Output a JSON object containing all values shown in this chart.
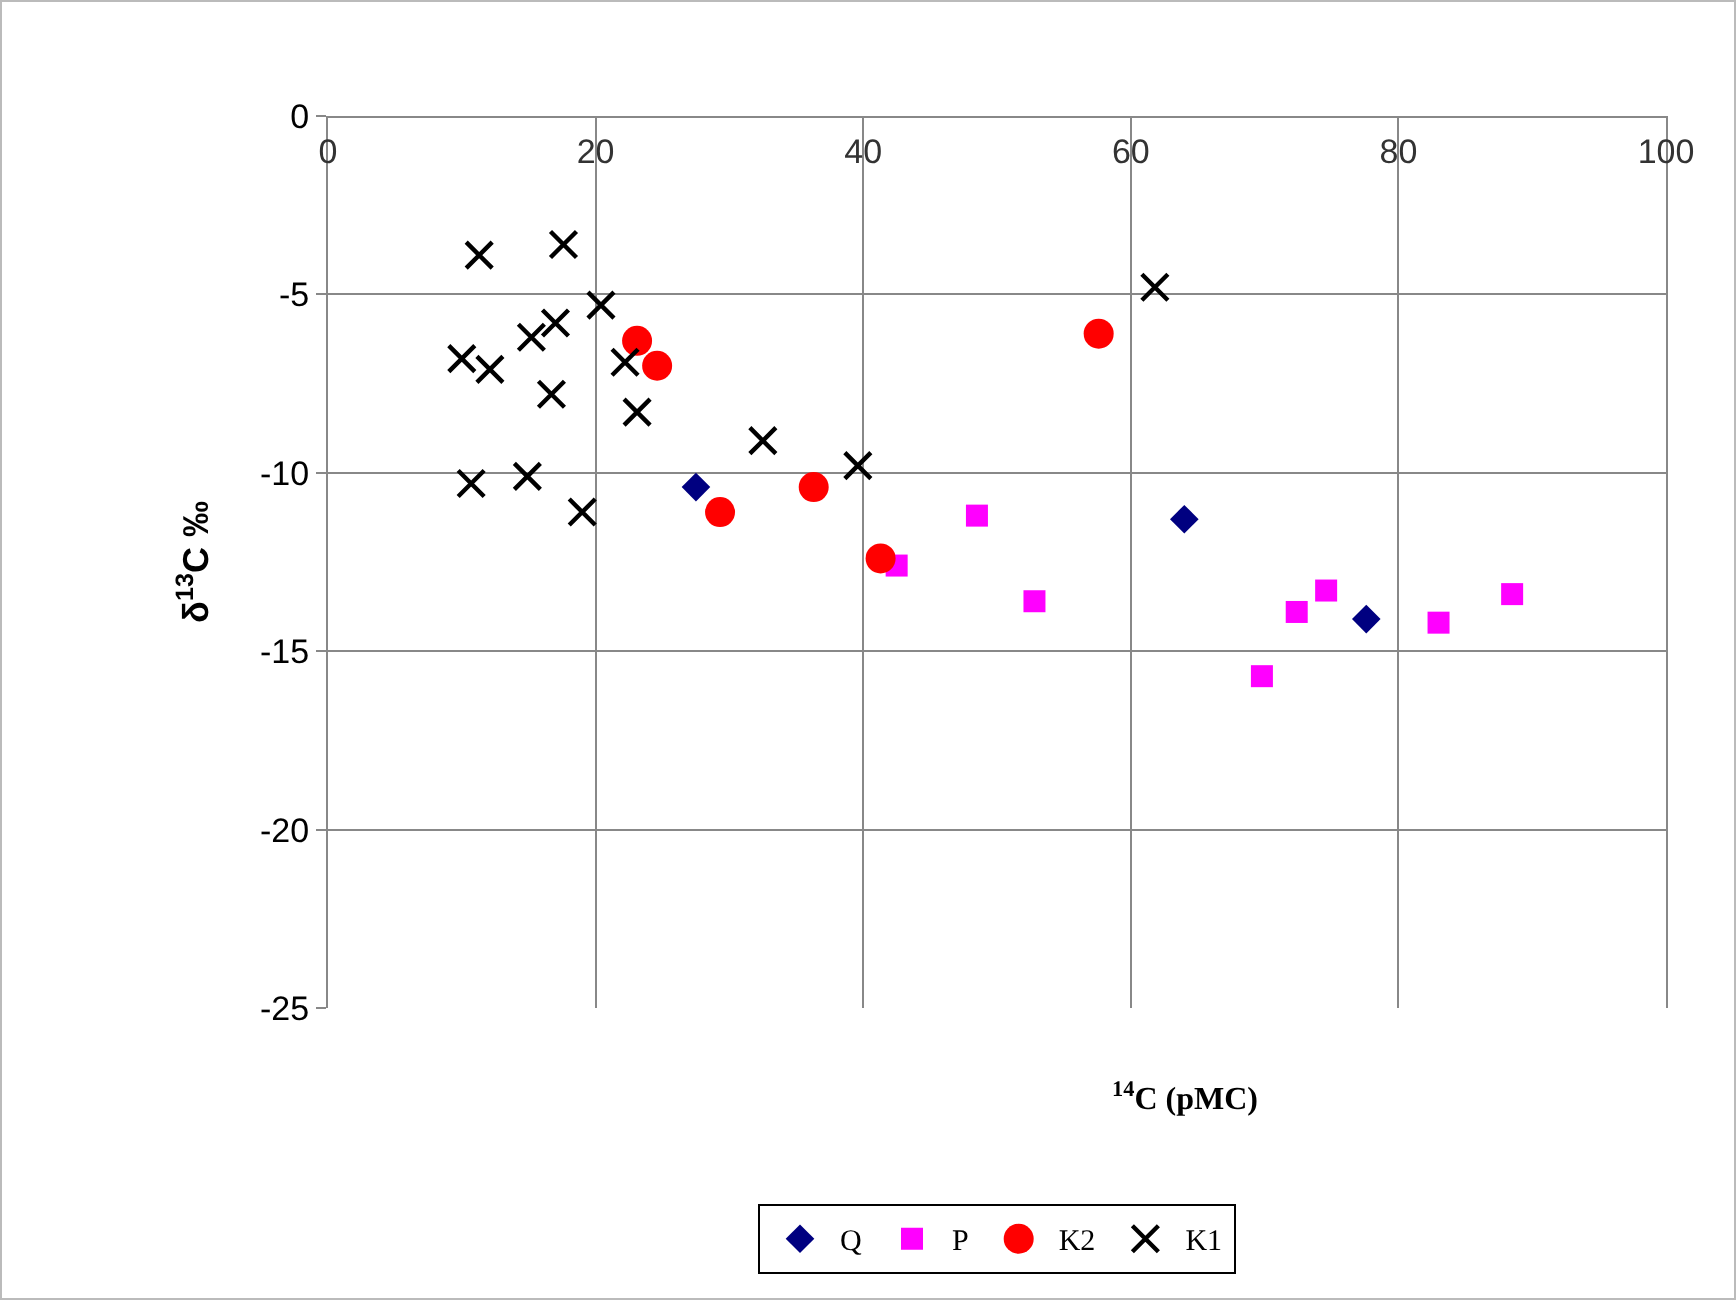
{
  "chart_data": {
    "type": "scatter",
    "xlabel": "$^{14}$C (pMC)",
    "ylabel": "δ$^{13}$C ‰",
    "xlim": [
      0,
      100
    ],
    "xticks": [
      0,
      20,
      40,
      60,
      80,
      100
    ],
    "ylim": [
      -25,
      0
    ],
    "yticks": [
      -25,
      -20,
      -15,
      -10,
      -5,
      0
    ],
    "grid": true,
    "legend": "bottom",
    "series": [
      {
        "name": "Q",
        "color": "#000080",
        "marker": "diamond",
        "x": [
          27.5,
          64.0,
          77.6
        ],
        "values": [
          -10.4,
          -11.3,
          -14.1
        ]
      },
      {
        "name": "P",
        "color": "#ff00ff",
        "marker": "square",
        "x": [
          42.5,
          48.5,
          52.8,
          69.8,
          72.4,
          74.6,
          83.0,
          88.5
        ],
        "values": [
          -12.6,
          -11.2,
          -13.6,
          -15.7,
          -13.9,
          -13.3,
          -14.2,
          -13.4
        ]
      },
      {
        "name": "K2",
        "color": "#ff0000",
        "marker": "circle",
        "x": [
          23.1,
          24.6,
          29.3,
          36.3,
          41.3,
          57.6
        ],
        "values": [
          -6.3,
          -7.0,
          -11.1,
          -10.4,
          -12.4,
          -6.1
        ]
      },
      {
        "name": "K1",
        "color": "#000000",
        "marker": "cross",
        "x": [
          11.3,
          17.6,
          20.4,
          17.0,
          15.2,
          10.0,
          12.1,
          16.7,
          22.2,
          23.1,
          32.5,
          10.7,
          14.9,
          19.0,
          39.6,
          61.8
        ],
        "values": [
          -3.9,
          -3.6,
          -5.3,
          -5.8,
          -6.2,
          -6.8,
          -7.1,
          -7.8,
          -6.9,
          -8.3,
          -9.1,
          -10.3,
          -10.1,
          -11.1,
          -9.8,
          -4.8
        ]
      }
    ]
  }
}
